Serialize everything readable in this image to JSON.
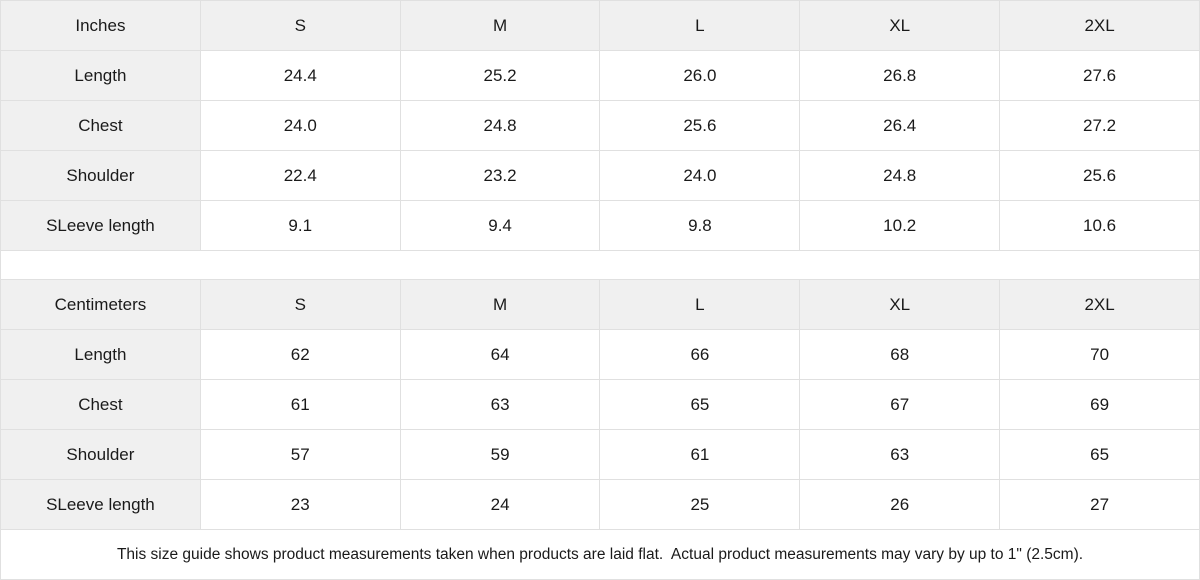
{
  "colors": {
    "header_bg": "#f0f0f0",
    "cell_bg": "#ffffff",
    "border": "#e0e0e0",
    "text": "#1a1a1a"
  },
  "tables": [
    {
      "unit_label": "Inches",
      "sizes": [
        "S",
        "M",
        "L",
        "XL",
        "2XL"
      ],
      "rows": [
        {
          "label": "Length",
          "values": [
            "24.4",
            "25.2",
            "26.0",
            "26.8",
            "27.6"
          ]
        },
        {
          "label": "Chest",
          "values": [
            "24.0",
            "24.8",
            "25.6",
            "26.4",
            "27.2"
          ]
        },
        {
          "label": "Shoulder",
          "values": [
            "22.4",
            "23.2",
            "24.0",
            "24.8",
            "25.6"
          ]
        },
        {
          "label": "SLeeve length",
          "values": [
            "9.1",
            "9.4",
            "9.8",
            "10.2",
            "10.6"
          ]
        }
      ]
    },
    {
      "unit_label": "Centimeters",
      "sizes": [
        "S",
        "M",
        "L",
        "XL",
        "2XL"
      ],
      "rows": [
        {
          "label": "Length",
          "values": [
            "62",
            "64",
            "66",
            "68",
            "70"
          ]
        },
        {
          "label": "Chest",
          "values": [
            "61",
            "63",
            "65",
            "67",
            "69"
          ]
        },
        {
          "label": "Shoulder",
          "values": [
            "57",
            "59",
            "61",
            "63",
            "65"
          ]
        },
        {
          "label": "SLeeve length",
          "values": [
            "23",
            "24",
            "25",
            "26",
            "27"
          ]
        }
      ]
    }
  ],
  "footer": {
    "note": "This size guide shows product measurements taken when products are laid flat.  Actual product measurements may vary by up to 1\" (2.5cm)."
  }
}
